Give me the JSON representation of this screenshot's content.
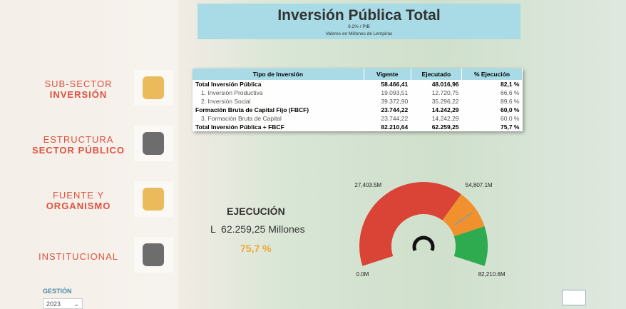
{
  "header": {
    "title": "Inversión Pública Total",
    "subtitle": "9.2% / PIB",
    "note": "Valores en Millones de Lempiras"
  },
  "nav": [
    {
      "line1": "SUB-SECTOR",
      "line2": "INVERSIÓN"
    },
    {
      "line1": "ESTRUCTURA",
      "line2": "SECTOR PÚBLICO"
    },
    {
      "line1": "FUENTE Y",
      "line2": "ORGANISMO"
    },
    {
      "line1": "INSTITUCIONAL"
    }
  ],
  "filter": {
    "label": "GESTIÓN",
    "value": "2023"
  },
  "table": {
    "columns": [
      "Tipo de Inversión",
      "Vigente",
      "Ejecutado",
      "% Ejecución"
    ],
    "rows": [
      {
        "bold": true,
        "cells": [
          "Total Inversión Pública",
          "58.466,41",
          "48.016,96",
          "82,1 %"
        ]
      },
      {
        "bold": false,
        "cells": [
          "1. Inversión Productiva",
          "19.093,51",
          "12.720,75",
          "66,6 %"
        ]
      },
      {
        "bold": false,
        "cells": [
          "2. Inversión Social",
          "39.372,90",
          "35.296,22",
          "89,6 %"
        ]
      },
      {
        "bold": true,
        "cells": [
          "Formación Bruta de Capital Fijo (FBCF)",
          "23.744,22",
          "14.242,29",
          "60,0 %"
        ]
      },
      {
        "bold": false,
        "cells": [
          "3. Formación Bruta de Capital",
          "23.744,22",
          "14.242,29",
          "60,0 %"
        ]
      },
      {
        "bold": true,
        "cells": [
          "Total Inversión Pública + FBCF",
          "82.210,64",
          "62.259,25",
          "75,7 %"
        ]
      }
    ]
  },
  "kpi": {
    "title": "EJECUCIÓN",
    "amount": "L  62.259,25 Millones",
    "percent": "75,7 %"
  },
  "gauge": {
    "min": {
      "value": 0,
      "label": "0.0M"
    },
    "max": {
      "value": 82210.6,
      "label": "82,210.6M"
    },
    "ticks": [
      {
        "value": 27403.5,
        "label": "27,403.5M"
      },
      {
        "value": 54807.1,
        "label": "54,807.1M"
      }
    ],
    "value": 62259.25,
    "bands": [
      {
        "to": 54807.1,
        "color": "#d94436"
      },
      {
        "to": 68500,
        "color": "#f0912e"
      },
      {
        "to": 82210.6,
        "color": "#2eaa4f"
      }
    ]
  }
}
